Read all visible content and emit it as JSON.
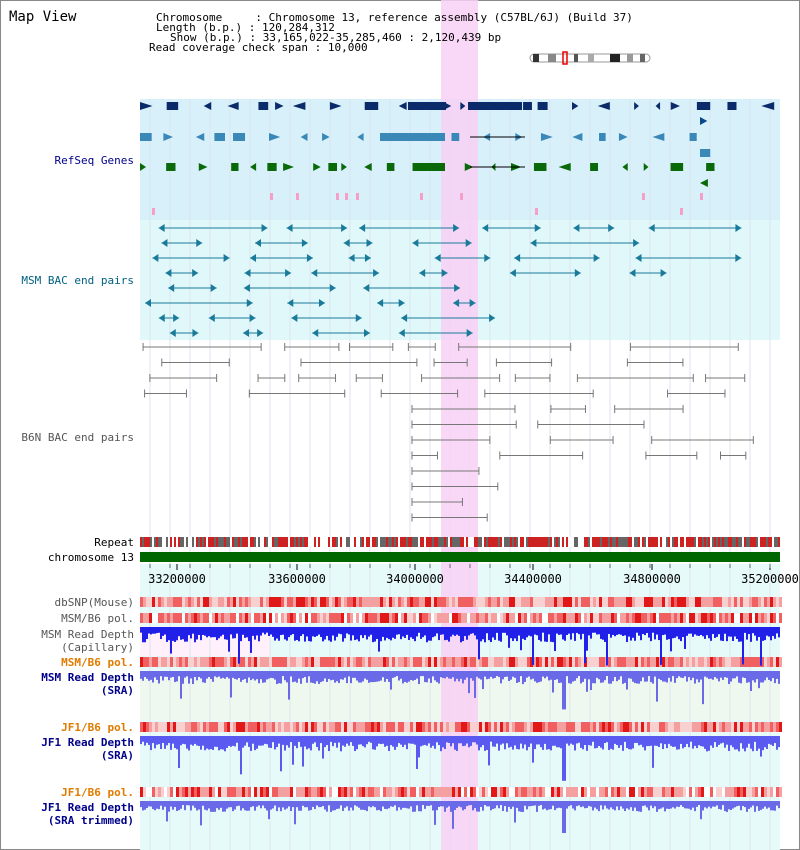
{
  "header": {
    "title": "Map View",
    "chromosome_label": "Chromosome",
    "chromosome_value": "Chromosome 13, reference assembly (C57BL/6J) (Build 37)",
    "length_label": "Length (b.p.)",
    "length_value": "120,284,312",
    "show_label": "Show (b.p.)",
    "show_value": "33,165,022-35,285,460 : 2,120,439 bp",
    "coverage_label": "Read coverage check span",
    "coverage_value": "10,000"
  },
  "tracks": {
    "refseq": "RefSeq Genes",
    "msm_bac": "MSM BAC end pairs",
    "b6n_bac": "B6N BAC end pairs",
    "repeat": "Repeat",
    "chromosome": "chromosome 13",
    "dbsnp": "dbSNP(Mouse)",
    "msm_b6_pol_1": "MSM/B6 pol.",
    "msm_depth_cap_1": "MSM Read Depth",
    "msm_depth_cap_2": "(Capillary)",
    "msm_b6_pol_2": "MSM/B6 pol.",
    "msm_depth_sra_1": "MSM Read Depth",
    "msm_depth_sra_2": "(SRA)",
    "jf1_b6_pol_1": "JF1/B6 pol.",
    "jf1_depth_sra_1": "JF1 Read Depth",
    "jf1_depth_sra_2": "(SRA)",
    "jf1_b6_pol_2": "JF1/B6 pol.",
    "jf1_depth_trim_1": "JF1 Read Depth",
    "jf1_depth_trim_2": "(SRA trimmed)"
  },
  "axis": {
    "ticks": [
      "33200000",
      "33600000",
      "34000000",
      "34400000",
      "34800000",
      "35200000"
    ]
  },
  "colors": {
    "refseq_bg": "#d8f0fa",
    "msm_bg": "#e0f8fa",
    "highlight": "#f8d0f4",
    "gene_dark": "#0a2a6a",
    "gene_mid": "#3a88b8",
    "gene_green": "#0a6a0a",
    "msm_pair": "#1a7a9a",
    "b6n_pair": "#777777",
    "chrom_bar": "#006600",
    "label_blue": "#00008b",
    "label_orange": "#e07b00",
    "label_teal": "#006080"
  }
}
